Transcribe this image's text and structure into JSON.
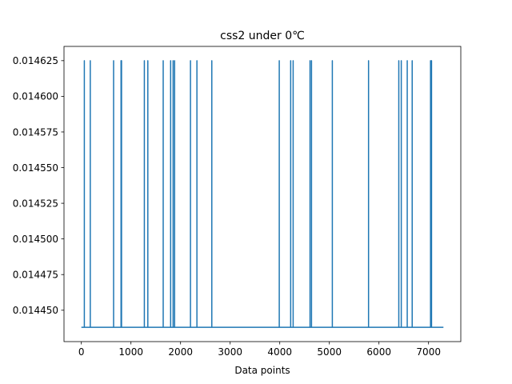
{
  "chart_data": {
    "type": "line",
    "title": "css2 under 0℃",
    "xlabel": "Data points",
    "ylabel": "",
    "xlim": [
      -350,
      7650
    ],
    "ylim": [
      0.014428,
      0.014635
    ],
    "xticks": [
      0,
      1000,
      2000,
      3000,
      4000,
      5000,
      6000,
      7000
    ],
    "xtick_labels": [
      "0",
      "1000",
      "2000",
      "3000",
      "4000",
      "5000",
      "6000",
      "7000"
    ],
    "yticks": [
      0.01445,
      0.014475,
      0.0145,
      0.014525,
      0.01455,
      0.014575,
      0.0146,
      0.014625
    ],
    "ytick_labels": [
      "0.014450",
      "0.014475",
      "0.014500",
      "0.014525",
      "0.014550",
      "0.014575",
      "0.014600",
      "0.014625"
    ],
    "grid": false,
    "series_color": "#1f77b4",
    "baseline_value": 0.014438,
    "spike_value": 0.014625,
    "x_range": [
      0,
      7300
    ],
    "spike_positions": [
      60,
      180,
      650,
      800,
      810,
      1270,
      1340,
      1650,
      1800,
      1850,
      1880,
      2200,
      2330,
      2630,
      3990,
      4220,
      4270,
      4610,
      4640,
      5060,
      5790,
      6400,
      6450,
      6570,
      6670,
      7040,
      7060
    ]
  }
}
